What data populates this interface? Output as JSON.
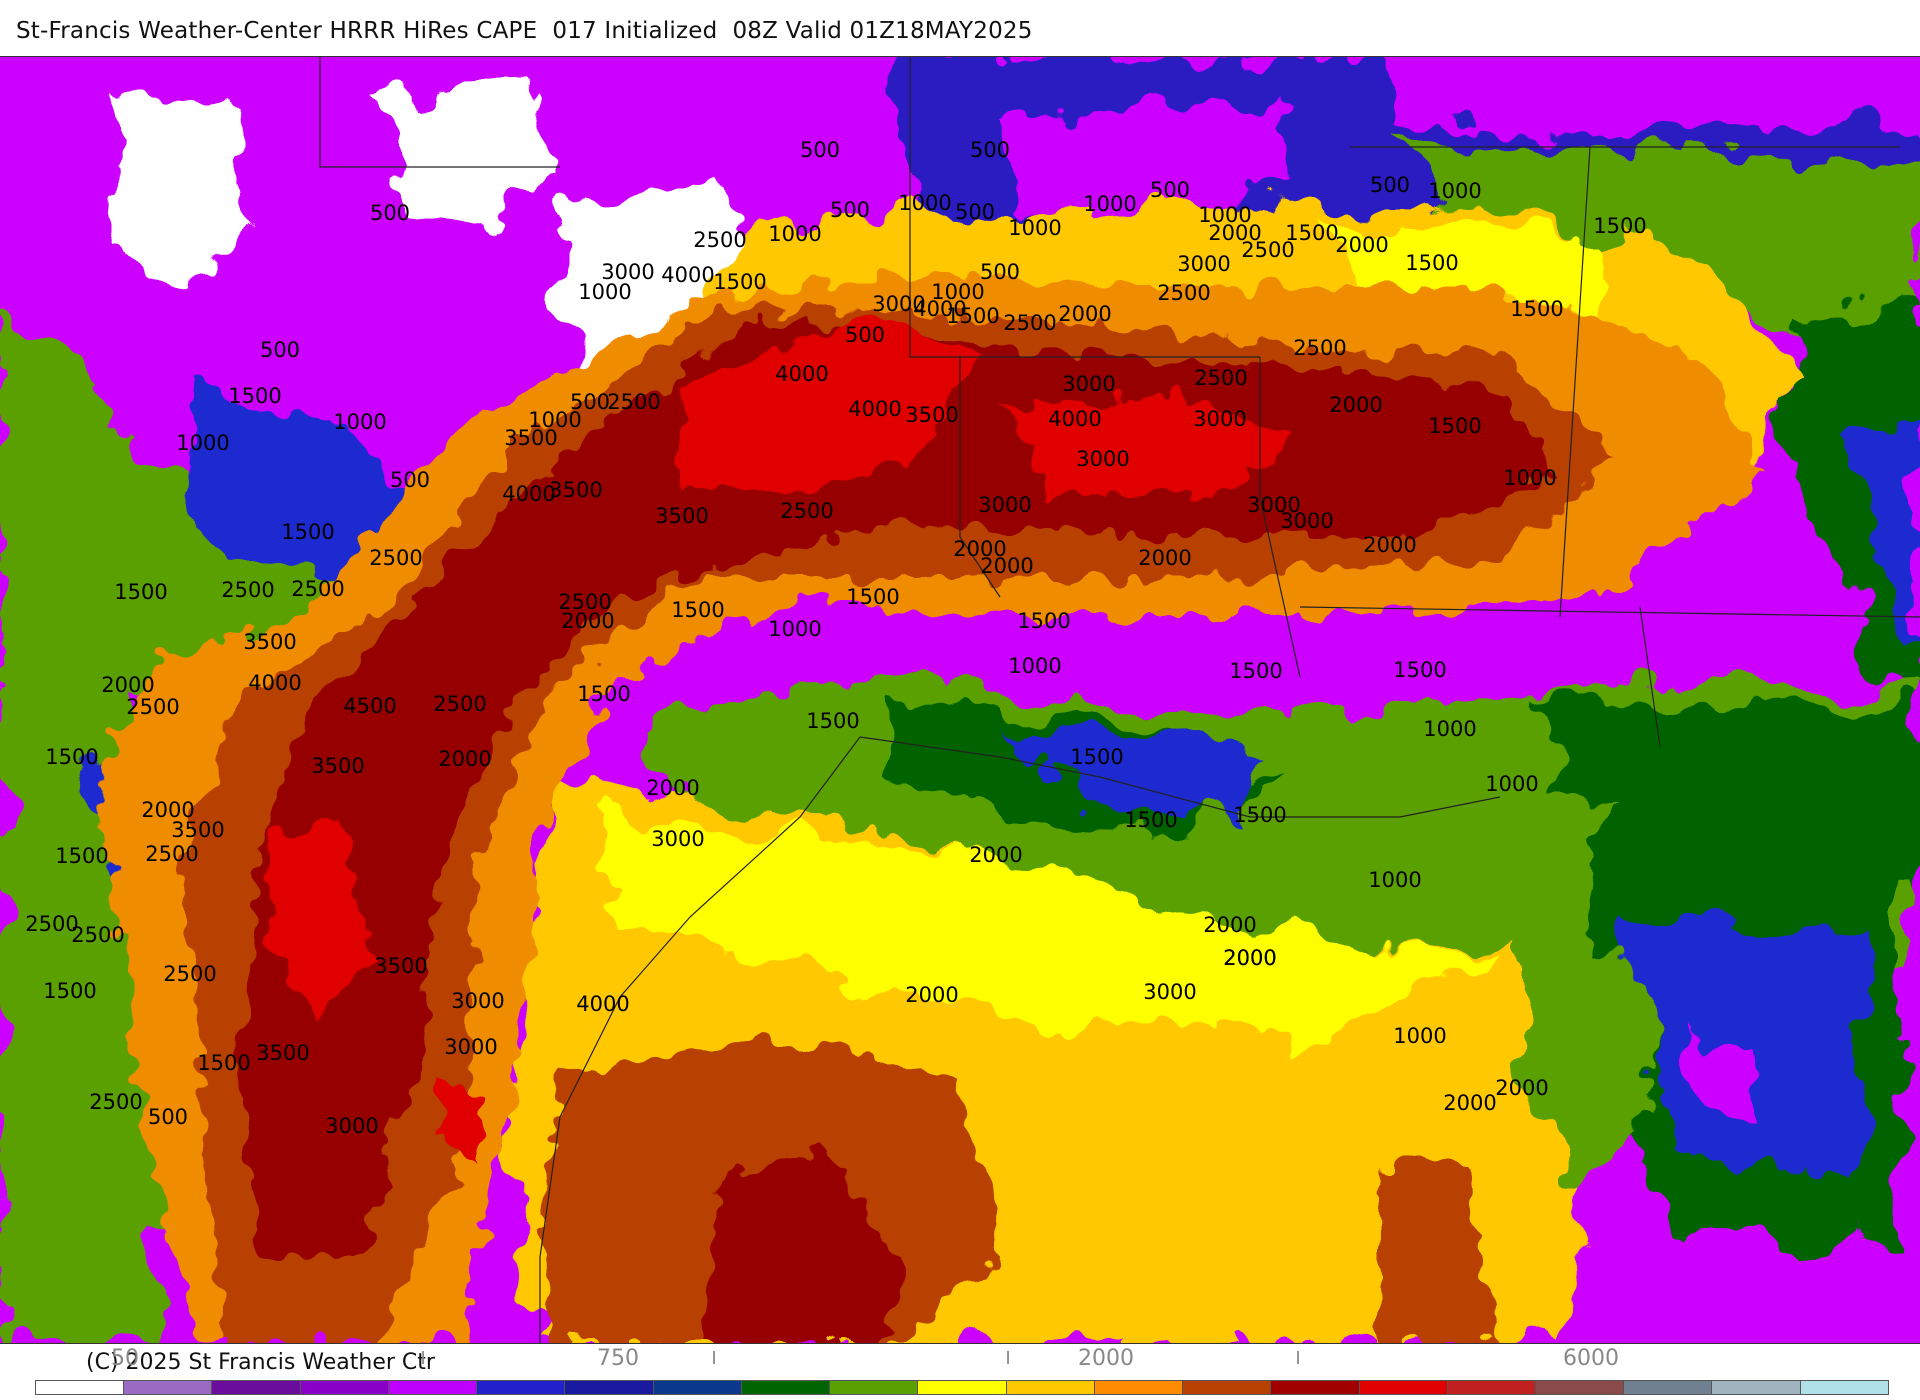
{
  "title": "St-Francis Weather-Center HRRR HiRes CAPE  017 Initialized  08Z Valid 01Z18MAY2025",
  "footer": {
    "copyright": "(C) 2025 St Francis Weather Ctr",
    "colorbar_ticks": [
      "50",
      "750",
      "2000",
      "6000"
    ],
    "colorbar_marks": [
      "I",
      "I",
      "I",
      "I"
    ],
    "colorbar_colors": [
      "#ffffff",
      "#9b6bc4",
      "#6a0d9c",
      "#8a00c8",
      "#c000ff",
      "#2222cc",
      "#1a1aa0",
      "#0b3a8c",
      "#006400",
      "#5aa000",
      "#ffff00",
      "#ffc800",
      "#ff8c00",
      "#b84000",
      "#a00000",
      "#e00000",
      "#c02020",
      "#8b4a4a",
      "#708090",
      "#a0b4c0",
      "#b0e0e8"
    ]
  },
  "map": {
    "variable": "CAPE",
    "colors": {
      "white": "#ffffff",
      "lavender": "#b8a0e0",
      "purple": "#8a2be2",
      "magenta": "#cc00ff",
      "indigo": "#3b1fb0",
      "blue": "#1a2ad0",
      "darkgreen": "#006400",
      "green": "#5aa000",
      "yellow": "#ffff00",
      "gold": "#ffc800",
      "orange": "#f08c00",
      "rust": "#b84000",
      "darkred": "#960000",
      "red": "#e00000"
    },
    "contour_labels": [
      "500",
      "500",
      "500",
      "500",
      "500",
      "500",
      "500",
      "500",
      "500",
      "500",
      "500",
      "500",
      "500",
      "1000",
      "1000",
      "1000",
      "1000",
      "1000",
      "1000",
      "1000",
      "1000",
      "1000",
      "1000",
      "1000",
      "1000",
      "1000",
      "1000",
      "1000",
      "1000",
      "1000",
      "1000",
      "1500",
      "1500",
      "1500",
      "1500",
      "1500",
      "1500",
      "1500",
      "1500",
      "1500",
      "1500",
      "1500",
      "1500",
      "1500",
      "1500",
      "1500",
      "1500",
      "1500",
      "1500",
      "1500",
      "1500",
      "1500",
      "1500",
      "1500",
      "1500",
      "2000",
      "2000",
      "2000",
      "2000",
      "2000",
      "2000",
      "2000",
      "2000",
      "2000",
      "2000",
      "2000",
      "2000",
      "2000",
      "2000",
      "2000",
      "2000",
      "2000",
      "2000",
      "2000",
      "2000",
      "2500",
      "2500",
      "2500",
      "2500",
      "2500",
      "2500",
      "2500",
      "2500",
      "2500",
      "2500",
      "2500",
      "2500",
      "2500",
      "2500",
      "2500",
      "2500",
      "2500",
      "2500",
      "2500",
      "3000",
      "3000",
      "3000",
      "3000",
      "3000",
      "3000",
      "3000",
      "3000",
      "3000",
      "3000",
      "3000",
      "3000",
      "3000",
      "3000",
      "3500",
      "3500",
      "3500",
      "3500",
      "3500",
      "3500",
      "3500",
      "3500",
      "3500",
      "4000",
      "4000",
      "4000",
      "4000",
      "4000",
      "4000",
      "4000",
      "4000",
      "4500"
    ]
  }
}
